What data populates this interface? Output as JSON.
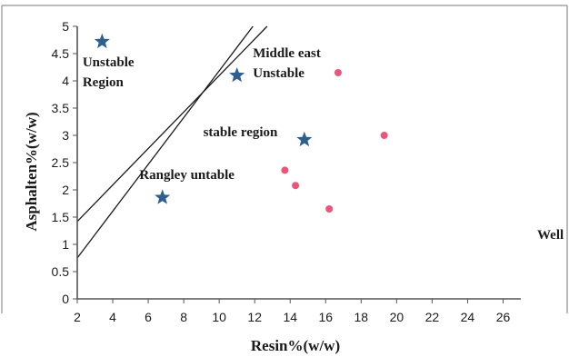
{
  "chart_data": {
    "type": "scatter",
    "xlabel": "Resin%(w/w)",
    "ylabel": "Asphalten%(w/w)",
    "xlim": [
      2,
      27
    ],
    "ylim": [
      0,
      5
    ],
    "x_ticks": [
      "2",
      "4",
      "6",
      "8",
      "10",
      "12",
      "14",
      "16",
      "18",
      "20",
      "22",
      "24",
      "26"
    ],
    "y_ticks": [
      "0",
      "0.5",
      "1",
      "1.5",
      "2",
      "2.5",
      "3",
      "3.5",
      "4",
      "4.5",
      "5"
    ],
    "series": [
      {
        "marker": "star",
        "color": "#2e5f8f",
        "points": [
          {
            "x": 3.4,
            "y": 4.72
          },
          {
            "x": 11.0,
            "y": 4.1
          },
          {
            "x": 14.8,
            "y": 2.92
          },
          {
            "x": 6.8,
            "y": 1.86
          }
        ]
      },
      {
        "marker": "circle",
        "color": "#e8577a",
        "points": [
          {
            "x": 16.7,
            "y": 4.15
          },
          {
            "x": 19.3,
            "y": 3.0
          },
          {
            "x": 13.7,
            "y": 2.36
          },
          {
            "x": 14.3,
            "y": 2.08
          },
          {
            "x": 16.2,
            "y": 1.65
          }
        ]
      }
    ],
    "boundary_lines": [
      {
        "from": {
          "x": 2,
          "y": 1.42
        },
        "to": {
          "x": 12.7,
          "y": 5
        }
      },
      {
        "from": {
          "x": 2,
          "y": 0.75
        },
        "to": {
          "x": 11.9,
          "y": 5
        }
      }
    ],
    "annotations": [
      {
        "lines": [
          "Unstable",
          "Region"
        ],
        "x": 2.3,
        "y": 4.27
      },
      {
        "lines": [
          "Middle east",
          "Unstable"
        ],
        "x": 11.9,
        "y": 4.43
      },
      {
        "lines": [
          "stable region"
        ],
        "x": 9.1,
        "y": 2.98
      },
      {
        "lines": [
          "Rangley untable"
        ],
        "x": 5.5,
        "y": 2.2
      }
    ],
    "side_label": "Well",
    "grid": false,
    "legend": "none"
  }
}
